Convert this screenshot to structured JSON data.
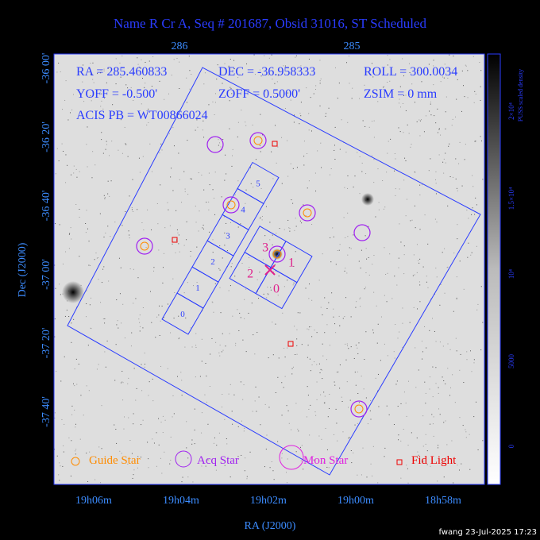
{
  "header": {
    "title": "Name R Cr A, Seq # 201687, Obsid 31016, ST Scheduled"
  },
  "info": [
    [
      "RA = 285.460833",
      "DEC = -36.958333",
      "ROLL = 300.0034"
    ],
    [
      "YOFF =  -0.500'",
      "ZOFF =  0.5000'",
      "ZSIM = 0 mm"
    ],
    [
      "ACIS PB = WT00866024"
    ]
  ],
  "axes": {
    "x_label": "RA (J2000)",
    "y_label": "Dec (J2000)",
    "x_ticks": [
      "19h06m",
      "19h04m",
      "19h02m",
      "19h00m",
      "18h58m"
    ],
    "top_ticks": [
      "286",
      "285"
    ],
    "y_ticks": [
      "-36 00'",
      "-36 20'",
      "-36 40'",
      "-37 00'",
      "-37 20'",
      "-37 40'"
    ]
  },
  "colorbar": {
    "title": "PUSS scaled density",
    "ticks": [
      "2×10⁴",
      "1.5×10⁴",
      "10⁴",
      "5000",
      "0"
    ]
  },
  "chips": {
    "s": [
      "0",
      "1",
      "2",
      "3",
      "4",
      "5"
    ],
    "i": [
      "0",
      "1",
      "2",
      "3"
    ]
  },
  "legend": [
    "Guide Star",
    "Acq Star",
    "Mon Star",
    "Fid Light"
  ],
  "footer": "fwang 23-Jul-2025 17:23"
}
